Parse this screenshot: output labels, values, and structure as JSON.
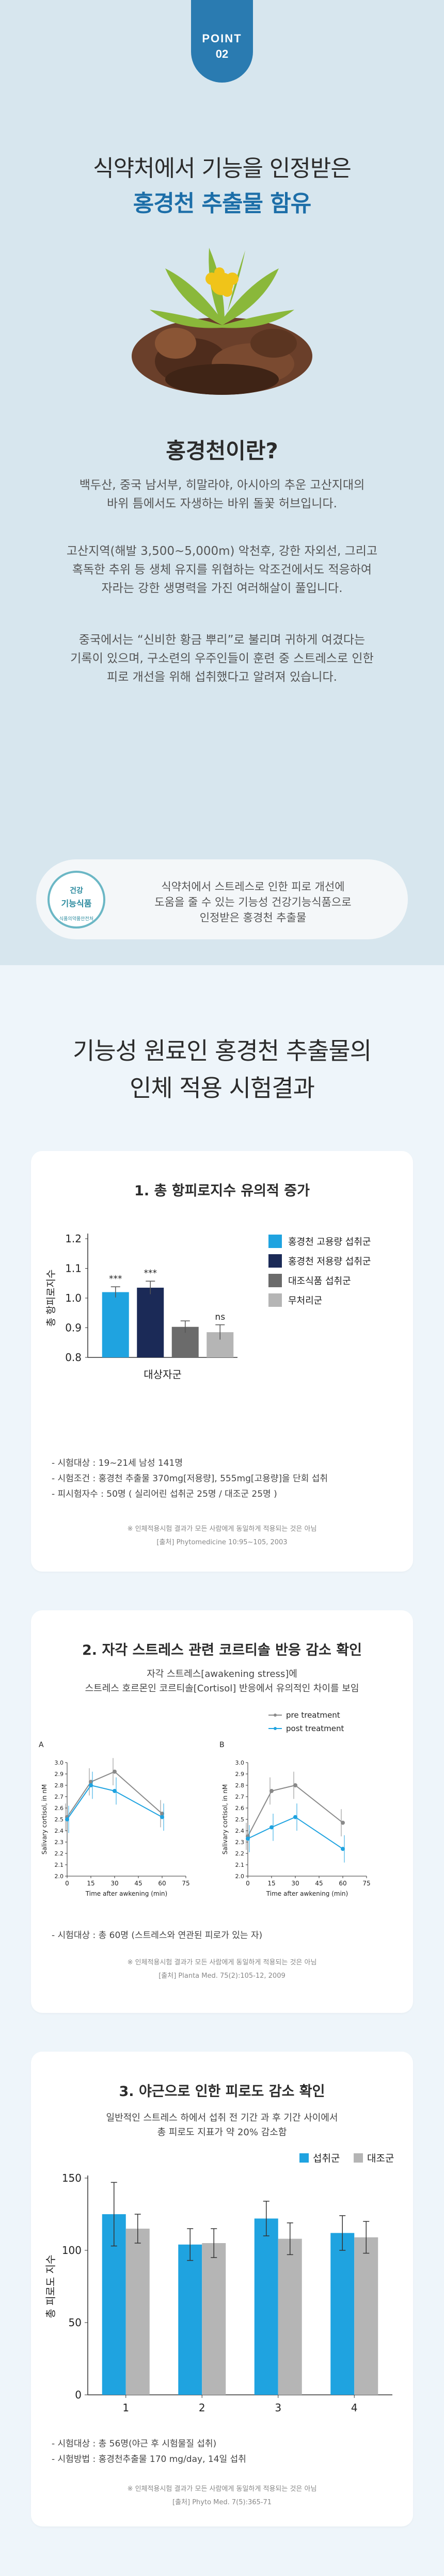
{
  "point_badge": {
    "line1": "POINT",
    "line2": "02"
  },
  "headline": {
    "line1": "식약처에서 기능을 인정받은",
    "line2": "홍경천 추출물 함유"
  },
  "what_is": {
    "heading": "홍경천이란?",
    "para1": [
      "백두산, 중국 남서부, 히말라야, 아시아의 추운 고산지대의",
      "바위 틈에서도 자생하는 바위 돌꽃 허브입니다."
    ],
    "para2": [
      "고산지역(해발 3,500~5,000m) 악천후, 강한 자외선, 그리고",
      "혹독한 추위 등 생체 유지를 위협하는 악조건에서도 적응하여",
      "자라는 강한 생명력을 가진 여러해살이 풀입니다."
    ],
    "para3": [
      "중국에서는 “신비한 황금 뿌리”로 불리며 귀하게 여겼다는",
      "기록이 있으며, 구소련의 우주인들이 훈련 중 스트레스로 인한",
      "피로 개선을 위해 섭취했다고 알려져 있습니다."
    ]
  },
  "info_box": {
    "cert_line1": "건강",
    "cert_line2": "기능식품",
    "cert_line3": "식품의약품안전처",
    "text": [
      "식약처에서 스트레스로 인한 피로 개선에",
      "도움을 줄 수 있는 기능성 건강기능식품으로",
      "인정받은 홍경천 추출물"
    ]
  },
  "results_title": [
    "기능성 원료인 홍경천 추출물의",
    "인체 적용 시험결과"
  ],
  "card1": {
    "title": "1. 총 항피로지수 유의적 증가",
    "notes": [
      "- 시험대상 : 19~21세 남성 141명",
      "- 시험조건 : 홍경천 추출물 370mg[저용량], 555mg[고용량]을 단회 섭취",
      "- 피시험자수 : 50명 ( 실리어린 섭취군 25명 / 대조군 25명 )"
    ],
    "fine": [
      "※ 인체적용시험 결과가 모든 사람에게 동일하게 적용되는 것은 아님",
      "[출처] Phytomedicine 10:95~105, 2003"
    ]
  },
  "card2": {
    "title": "2. 자각 스트레스 관련 코르티솔 반응 감소 확인",
    "sub": [
      "자각 스트레스[awakening stress]에",
      "스트레스 호르몬인 코르티솔[Cortisol] 반응에서 유의적인 차이를 보임"
    ],
    "notes": [
      "- 시험대상 : 총 60명 (스트레스와 연관된 피로가 있는 자)"
    ],
    "fine": [
      "※ 인체적용시험 결과가 모든 사람에게 동일하게 적용되는 것은 아님",
      "[출처] Planta Med. 75(2):105-12, 2009"
    ]
  },
  "card3": {
    "title": "3. 야근으로 인한 피로도 감소 확인",
    "sub": [
      "일반적인 스트레스 하에서 섭취 전 기간 과 후 기간 사이에서",
      "총 피로도 지표가 약 20% 감소함"
    ],
    "notes": [
      "- 시험대상 : 총 56명(야근 후 시험물질 섭취)",
      "- 시험방법 : 홍경천추출물 170 mg/day, 14일 섭취"
    ],
    "fine": [
      "※ 인체적용시험 결과가 모든 사람에게 동일하게 적용되는 것은 아님",
      "[출처] Phyto Med. 7(5):365-71"
    ]
  },
  "chart_data": [
    {
      "type": "bar",
      "ylabel": "총 항피로지수",
      "xlabel": "대상자군",
      "ylim": [
        0.8,
        1.2
      ],
      "yticks": [
        0.8,
        0.9,
        1.0,
        1.1,
        1.2
      ],
      "categories": [
        "홍경천 고용량 섭취군",
        "홍경천 저용량 섭취군",
        "대조식품 섭취군",
        "무처리군"
      ],
      "values": [
        1.02,
        1.035,
        0.903,
        0.885
      ],
      "errors": [
        0.018,
        0.022,
        0.02,
        0.025
      ],
      "annotations": [
        "***",
        "***",
        "",
        "ns"
      ],
      "colors": [
        "#1fa3e0",
        "#1b2a57",
        "#6b6b6b",
        "#b5b5b5"
      ],
      "legend_position": "top-right"
    },
    {
      "type": "line",
      "ylabel": "Salivary cortisol, in nM",
      "xlabel": "Time after awkening (min)",
      "xticks": [
        0,
        15,
        30,
        45,
        60,
        75
      ],
      "yticks": [
        2.0,
        2.1,
        2.2,
        2.3,
        2.4,
        2.5,
        2.6,
        2.7,
        2.8,
        2.9,
        3.0
      ],
      "legend": [
        "pre treatment",
        "post treatment"
      ],
      "legend_position": "top-right",
      "panels": [
        {
          "label": "A",
          "x": [
            0,
            15,
            30,
            60
          ],
          "series": [
            {
              "name": "pre treatment",
              "values": [
                2.52,
                2.83,
                2.92,
                2.55
              ]
            },
            {
              "name": "post treatment",
              "values": [
                2.5,
                2.8,
                2.75,
                2.52
              ]
            }
          ]
        },
        {
          "label": "B",
          "x": [
            0,
            15,
            30,
            60
          ],
          "series": [
            {
              "name": "pre treatment",
              "values": [
                2.35,
                2.75,
                2.8,
                2.47
              ]
            },
            {
              "name": "post treatment",
              "values": [
                2.33,
                2.43,
                2.52,
                2.24
              ]
            }
          ]
        }
      ]
    },
    {
      "type": "bar",
      "ylabel": "총 피로도 지수",
      "ylim": [
        0,
        150
      ],
      "yticks": [
        0,
        50,
        100,
        150
      ],
      "categories": [
        "1",
        "2",
        "3",
        "4"
      ],
      "legend_position": "top-right",
      "series": [
        {
          "name": "섭취군",
          "values": [
            125,
            104,
            122,
            112
          ],
          "errors": [
            22,
            11,
            12,
            12
          ],
          "color": "#1fa3e0"
        },
        {
          "name": "대조군",
          "values": [
            115,
            105,
            108,
            109
          ],
          "errors": [
            10,
            10,
            11,
            11
          ],
          "color": "#b5b5b5"
        }
      ]
    }
  ]
}
